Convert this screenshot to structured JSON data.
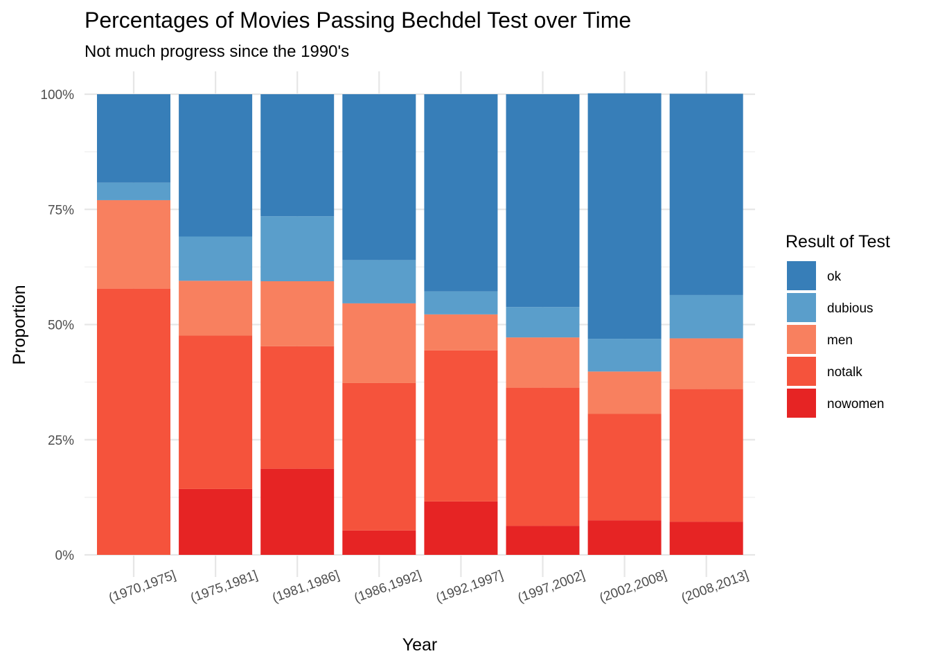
{
  "chart_data": {
    "type": "bar",
    "stacked": true,
    "title": "Percentages of Movies Passing Bechdel Test over Time",
    "subtitle": "Not much progress since the 1990's",
    "xlabel": "Year",
    "ylabel": "Proportion",
    "ylim": [
      0,
      1
    ],
    "yticks": [
      0,
      0.25,
      0.5,
      0.75,
      1
    ],
    "ytick_labels": [
      "0%",
      "25%",
      "50%",
      "75%",
      "100%"
    ],
    "grid": true,
    "legend": {
      "title": "Result of Test",
      "position": "right"
    },
    "categories": [
      "(1970,1975]",
      "(1975,1981]",
      "(1981,1986]",
      "(1986,1992]",
      "(1992,1997]",
      "(1997,2002]",
      "(2002,2008]",
      "(2008,2013]"
    ],
    "series": [
      {
        "name": "ok",
        "color": "#377EB8",
        "values": [
          0.192,
          0.309,
          0.265,
          0.36,
          0.428,
          0.462,
          0.533,
          0.437
        ]
      },
      {
        "name": "dubious",
        "color": "#5A9ECB",
        "values": [
          0.038,
          0.096,
          0.141,
          0.094,
          0.05,
          0.066,
          0.071,
          0.094
        ]
      },
      {
        "name": "men",
        "color": "#F8805F",
        "values": [
          0.192,
          0.119,
          0.141,
          0.173,
          0.078,
          0.109,
          0.092,
          0.11
        ]
      },
      {
        "name": "notalk",
        "color": "#F5533C",
        "values": [
          0.578,
          0.333,
          0.266,
          0.32,
          0.328,
          0.3,
          0.231,
          0.288
        ]
      },
      {
        "name": "nowomen",
        "color": "#E62424",
        "values": [
          0.0,
          0.143,
          0.187,
          0.053,
          0.116,
          0.063,
          0.075,
          0.072
        ]
      }
    ]
  }
}
